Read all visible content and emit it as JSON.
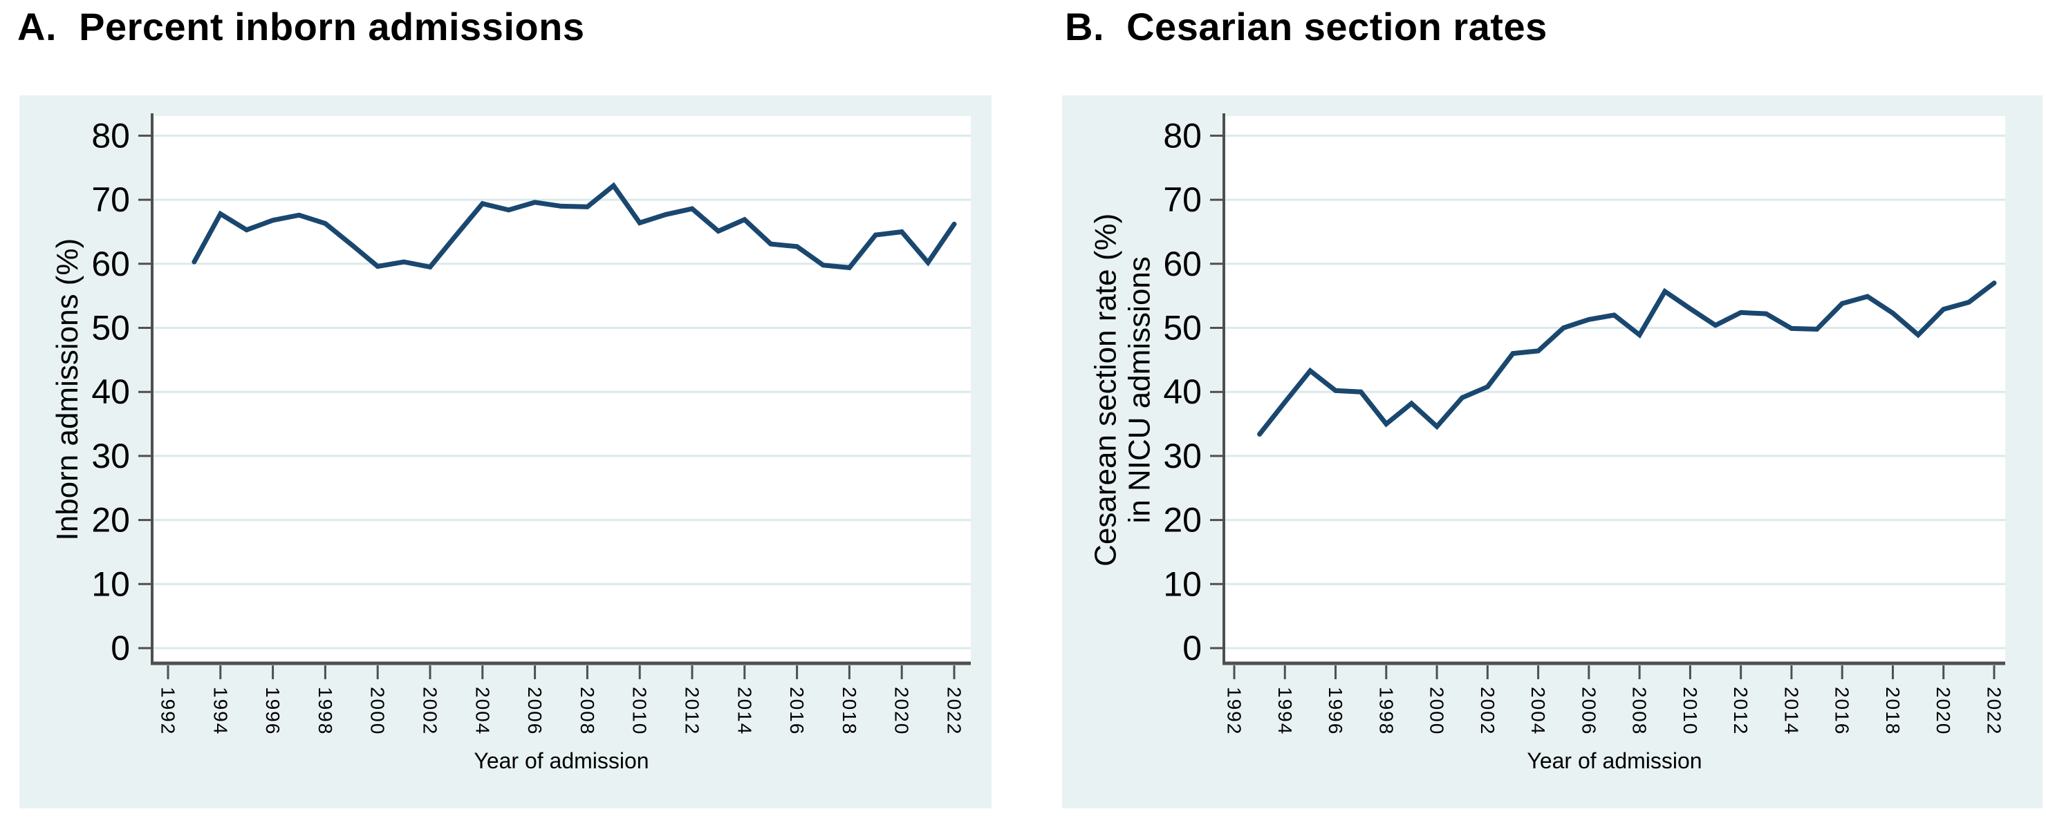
{
  "figure": {
    "description": "Two-panel line chart of NICU admission trends by year",
    "xlabel": "Year of admission"
  },
  "colors": {
    "line": "#1a476f",
    "panel_background": "#e9f2f3",
    "plot_background": "#ffffff",
    "gridline": "#dbe9ec",
    "axis": "#4f4f4f",
    "text": "#000000"
  },
  "chart_data": [
    {
      "type": "line",
      "panel": "A",
      "title": "A.  Percent inborn admissions",
      "ylabel_lines": [
        "Inborn admissions (%)"
      ],
      "xlabel": "Year of admission",
      "xlim": [
        1992,
        2022
      ],
      "ylim": [
        0,
        80
      ],
      "yticks": [
        0,
        10,
        20,
        30,
        40,
        50,
        60,
        70,
        80
      ],
      "xticks": [
        1992,
        1994,
        1996,
        1998,
        2000,
        2002,
        2004,
        2006,
        2008,
        2010,
        2012,
        2014,
        2016,
        2018,
        2020,
        2022
      ],
      "grid": true,
      "legend": false,
      "x": [
        1993,
        1994,
        1995,
        1996,
        1997,
        1998,
        1999,
        2000,
        2001,
        2002,
        2003,
        2004,
        2005,
        2006,
        2007,
        2008,
        2009,
        2010,
        2011,
        2012,
        2013,
        2014,
        2015,
        2016,
        2017,
        2018,
        2019,
        2020,
        2021,
        2022
      ],
      "values": [
        60.3,
        67.8,
        65.3,
        66.8,
        67.6,
        66.3,
        63.0,
        59.6,
        60.3,
        59.5,
        64.5,
        69.4,
        68.4,
        69.6,
        69.0,
        68.9,
        72.2,
        66.4,
        67.7,
        68.6,
        65.1,
        66.9,
        63.1,
        62.7,
        59.8,
        59.4,
        64.5,
        65.0,
        60.2,
        66.2
      ]
    },
    {
      "type": "line",
      "panel": "B",
      "title": "B.  Cesarian section rates",
      "ylabel_lines": [
        "Cesarean section rate (%)",
        "in NICU admissions"
      ],
      "xlabel": "Year of admission",
      "xlim": [
        1992,
        2022
      ],
      "ylim": [
        0,
        80
      ],
      "yticks": [
        0,
        10,
        20,
        30,
        40,
        50,
        60,
        70,
        80
      ],
      "xticks": [
        1992,
        1994,
        1996,
        1998,
        2000,
        2002,
        2004,
        2006,
        2008,
        2010,
        2012,
        2014,
        2016,
        2018,
        2020,
        2022
      ],
      "grid": true,
      "legend": false,
      "x": [
        1993,
        1994,
        1995,
        1996,
        1997,
        1998,
        1999,
        2000,
        2001,
        2002,
        2003,
        2004,
        2005,
        2006,
        2007,
        2008,
        2009,
        2010,
        2011,
        2012,
        2013,
        2014,
        2015,
        2016,
        2017,
        2018,
        2019,
        2020,
        2021,
        2022
      ],
      "values": [
        33.4,
        38.4,
        43.3,
        40.2,
        40.0,
        35.0,
        38.2,
        34.6,
        39.1,
        40.8,
        46.0,
        46.4,
        50.0,
        51.3,
        52.0,
        48.9,
        55.7,
        53.0,
        50.4,
        52.4,
        52.2,
        49.9,
        49.8,
        53.8,
        54.9,
        52.3,
        48.9,
        52.9,
        54.0,
        57.0
      ]
    }
  ]
}
